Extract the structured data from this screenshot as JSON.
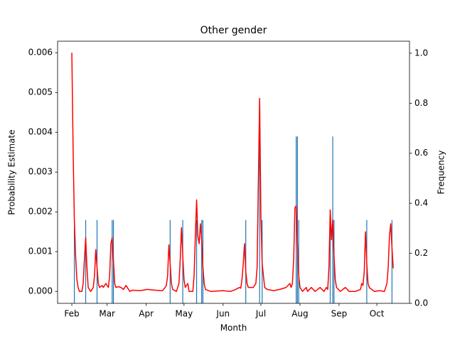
{
  "chart_data": {
    "type": "combo",
    "title": "Other gender",
    "xlabel": "Month",
    "ylabel": "Probability Estimate",
    "y2label": "Frequency",
    "xlim": [
      -11.3,
      267.9
    ],
    "xticks": [
      {
        "value": 0,
        "label": "Feb"
      },
      {
        "value": 28,
        "label": "Mar"
      },
      {
        "value": 59,
        "label": "Apr"
      },
      {
        "value": 89,
        "label": "May"
      },
      {
        "value": 120,
        "label": "Jun"
      },
      {
        "value": 150,
        "label": "Jul"
      },
      {
        "value": 181,
        "label": "Aug"
      },
      {
        "value": 212,
        "label": "Sep"
      },
      {
        "value": 242,
        "label": "Oct"
      }
    ],
    "ylim": [
      -0.0003,
      0.00629
    ],
    "yticks": [
      {
        "value": 0,
        "label": "0.000"
      },
      {
        "value": 0.001,
        "label": "0.001"
      },
      {
        "value": 0.002,
        "label": "0.002"
      },
      {
        "value": 0.003,
        "label": "0.003"
      },
      {
        "value": 0.004,
        "label": "0.004"
      },
      {
        "value": 0.005,
        "label": "0.005"
      },
      {
        "value": 0.006,
        "label": "0.006"
      }
    ],
    "y2lim": [
      0,
      1.048
    ],
    "y2ticks": [
      {
        "value": 0,
        "label": "0.0"
      },
      {
        "value": 0.2,
        "label": "0.2"
      },
      {
        "value": 0.4,
        "label": "0.4"
      },
      {
        "value": 0.6,
        "label": "0.6"
      },
      {
        "value": 0.8,
        "label": "0.8"
      },
      {
        "value": 1,
        "label": "1.0"
      }
    ],
    "series": [
      {
        "type": "bar",
        "axis": "y2",
        "color": "#1f77b4",
        "x": [
          2,
          11,
          20,
          32,
          33,
          78,
          88,
          99,
          103,
          104,
          138,
          149,
          151,
          178,
          179,
          180,
          205,
          207,
          208,
          234,
          254
        ],
        "values": [
          0.333,
          0.333,
          0.333,
          0.333,
          0.333,
          0.333,
          0.333,
          0.333,
          0.333,
          0.333,
          0.333,
          0.667,
          0.333,
          0.667,
          0.667,
          0.333,
          0.333,
          0.667,
          0.333,
          0.333,
          0.333
        ]
      },
      {
        "type": "line",
        "axis": "y",
        "color": "#ff0000",
        "x": [
          0,
          1,
          2,
          3,
          4,
          5,
          6,
          8,
          9,
          10,
          11,
          12,
          13,
          15,
          17,
          18,
          19,
          20,
          21,
          22,
          24,
          25,
          27,
          29,
          30,
          31,
          32,
          33,
          34,
          35,
          37,
          39,
          41,
          43,
          44,
          46,
          48,
          54,
          60,
          66,
          72,
          74,
          75,
          76,
          77,
          78,
          79,
          80,
          83,
          85,
          86,
          87,
          88,
          89,
          90,
          92,
          93,
          96,
          97,
          98,
          99,
          100,
          101,
          102,
          103,
          104,
          105,
          106,
          110,
          120,
          126,
          130,
          133,
          134,
          135,
          136,
          137,
          138,
          139,
          140,
          144,
          146,
          147,
          148,
          149,
          150,
          151,
          152,
          153,
          155,
          160,
          165,
          170,
          173,
          174,
          175,
          176,
          177,
          178,
          179,
          180,
          181,
          183,
          186,
          187,
          190,
          193,
          197,
          200,
          202,
          203,
          204,
          205,
          206,
          207,
          208,
          209,
          210,
          213,
          217,
          220,
          225,
          229,
          230,
          231,
          232,
          233,
          234,
          235,
          236,
          240,
          244,
          248,
          250,
          251,
          252,
          253,
          254,
          255
        ],
        "values": [
          0.006,
          0.0036,
          0.0018,
          0.0009,
          0.0003,
          0.0001,
          0.0,
          0.0,
          0.0002,
          0.0008,
          0.00135,
          0.0006,
          0.0001,
          0.0,
          0.0001,
          0.0004,
          0.00105,
          0.0006,
          0.0002,
          0.0001,
          0.00015,
          0.0001,
          0.0002,
          0.0001,
          0.0004,
          0.0012,
          0.00135,
          0.0008,
          0.0002,
          0.0001,
          0.00012,
          0.0001,
          5e-05,
          0.00015,
          0.0001,
          0.0,
          3e-05,
          2e-05,
          5e-05,
          3e-05,
          2e-05,
          0.0001,
          0.00015,
          0.0004,
          0.00117,
          0.0007,
          0.0002,
          5e-05,
          0.0,
          0.0002,
          0.0008,
          0.0016,
          0.0009,
          0.0003,
          0.0001,
          0.0002,
          0.0,
          0.0,
          0.0004,
          0.0014,
          0.0023,
          0.0014,
          0.0012,
          0.0017,
          0.0013,
          0.0006,
          0.0002,
          5e-05,
          0.0,
          2e-05,
          0.0,
          5e-05,
          0.0001,
          8e-05,
          0.0003,
          0.0007,
          0.0012,
          0.0005,
          0.0002,
          0.0001,
          0.0001,
          0.0002,
          0.0006,
          0.0028,
          0.00485,
          0.0019,
          0.0007,
          0.0004,
          0.0001,
          5e-05,
          2e-05,
          5e-05,
          0.0001,
          0.0002,
          0.0001,
          0.0002,
          0.0008,
          0.0021,
          0.00215,
          0.0012,
          0.0004,
          0.0001,
          0.0,
          0.0001,
          0.0,
          0.0001,
          0.0,
          0.0001,
          0.0,
          0.0001,
          5e-05,
          0.0006,
          0.00205,
          0.0013,
          0.0018,
          0.0009,
          0.0003,
          0.0001,
          0.0,
          0.0001,
          0.0,
          0.0,
          5e-05,
          0.0002,
          0.00015,
          0.0005,
          0.0015,
          0.0007,
          0.0002,
          0.0001,
          0.0,
          2e-05,
          0.0,
          0.0002,
          0.0006,
          0.0014,
          0.0017,
          0.0011,
          0.00058
        ]
      }
    ]
  }
}
